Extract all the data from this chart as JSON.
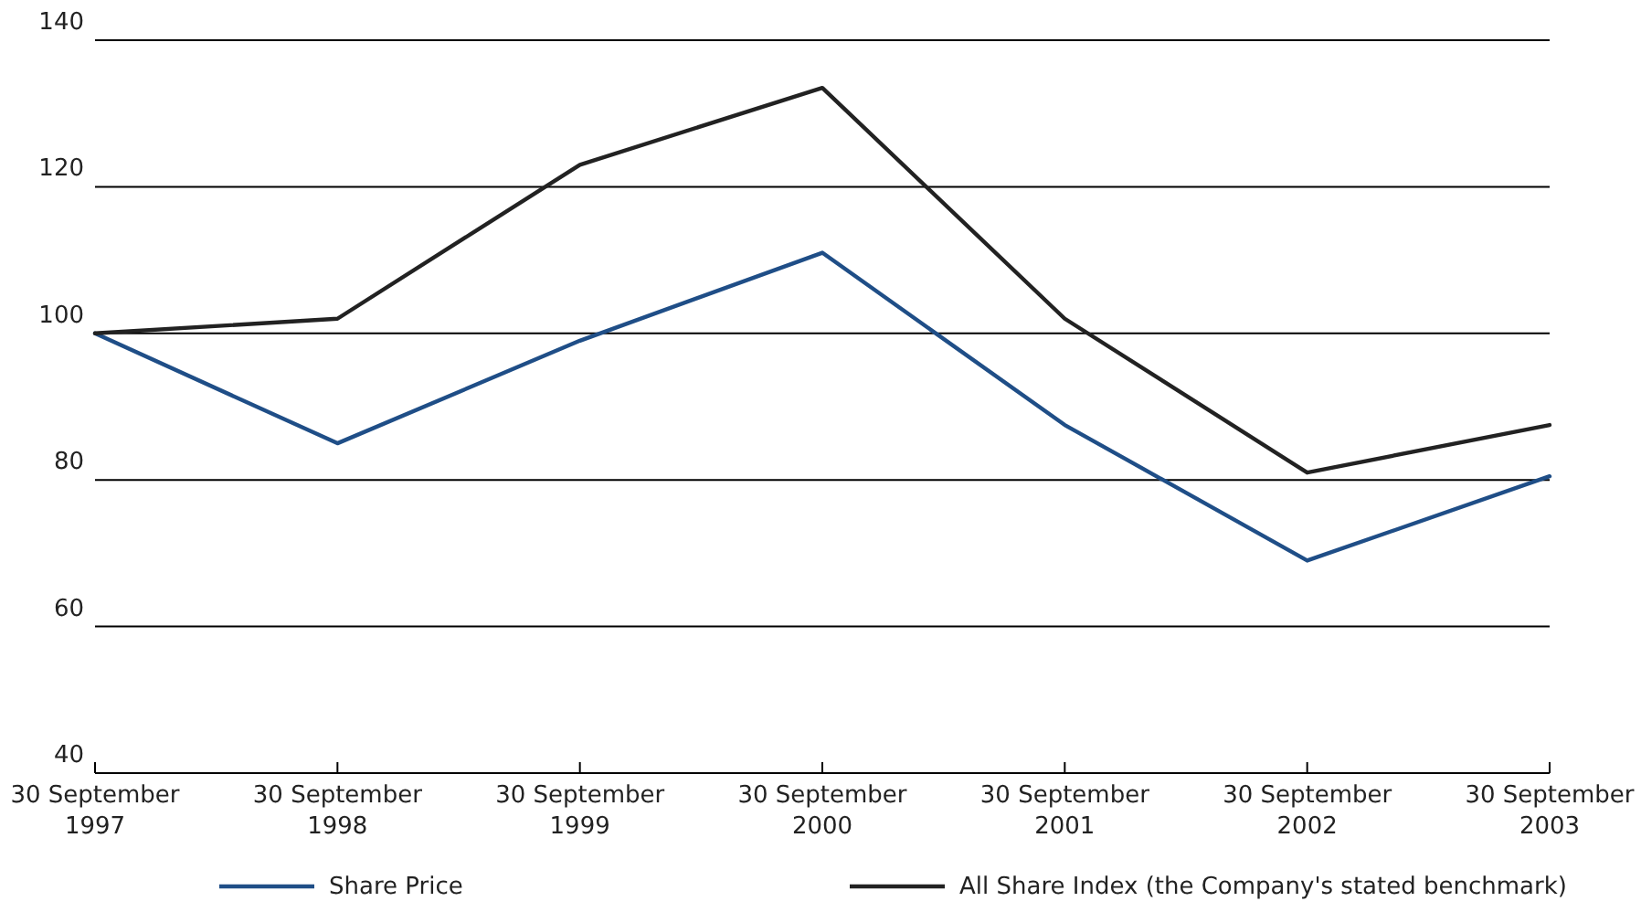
{
  "chart_data": {
    "type": "line",
    "categories": [
      "30 September\n1997",
      "30 September\n1998",
      "30 September\n1999",
      "30 September\n2000",
      "30 September\n2001",
      "30 September\n2002",
      "30 September\n2003"
    ],
    "series": [
      {
        "name": "Share Price",
        "color": "#1f4e87",
        "values": [
          100,
          85,
          99,
          111,
          87.5,
          69,
          80.5
        ]
      },
      {
        "name": "All Share Index (the Company's stated benchmark)",
        "color": "#222222",
        "values": [
          100,
          102,
          123,
          133.5,
          102,
          81,
          87.5
        ]
      }
    ],
    "ylim": [
      40,
      140
    ],
    "yticks": [
      40,
      60,
      80,
      100,
      120,
      140
    ],
    "grid": "y",
    "legend": "bottom",
    "marker": "none",
    "line_style": "solid"
  }
}
